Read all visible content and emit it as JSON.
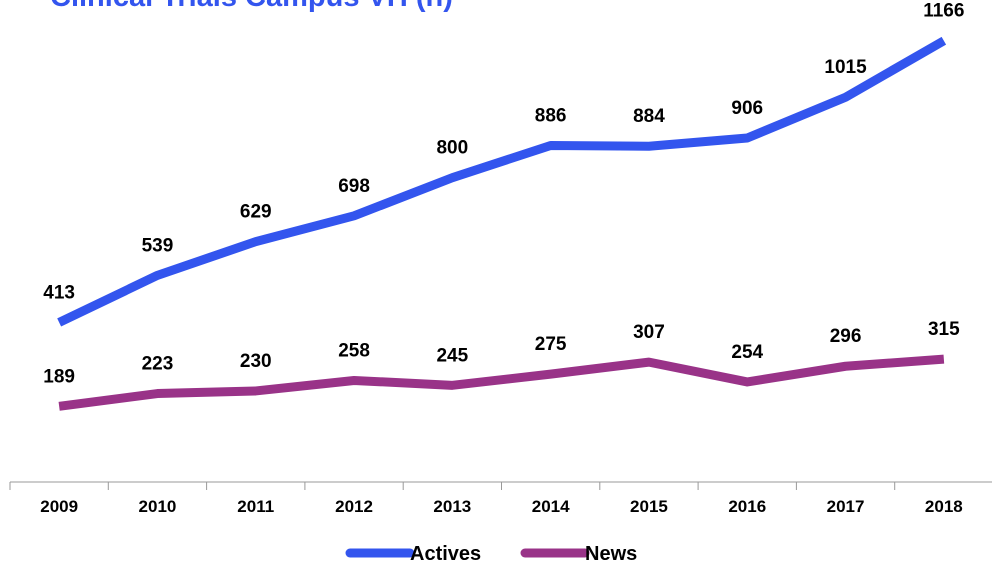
{
  "chart_data": {
    "type": "line",
    "title": "Clinical Trials Campus VH (n)",
    "categories": [
      "2009",
      "2010",
      "2011",
      "2012",
      "2013",
      "2014",
      "2015",
      "2016",
      "2017",
      "2018"
    ],
    "series": [
      {
        "name": "Actives",
        "color": "#3355ee",
        "values": [
          413,
          539,
          629,
          698,
          800,
          886,
          884,
          906,
          1015,
          1166
        ]
      },
      {
        "name": "News",
        "color": "#993388",
        "values": [
          189,
          223,
          230,
          258,
          245,
          275,
          307,
          254,
          296,
          315
        ]
      }
    ],
    "ylim": [
      0,
      1200
    ]
  }
}
